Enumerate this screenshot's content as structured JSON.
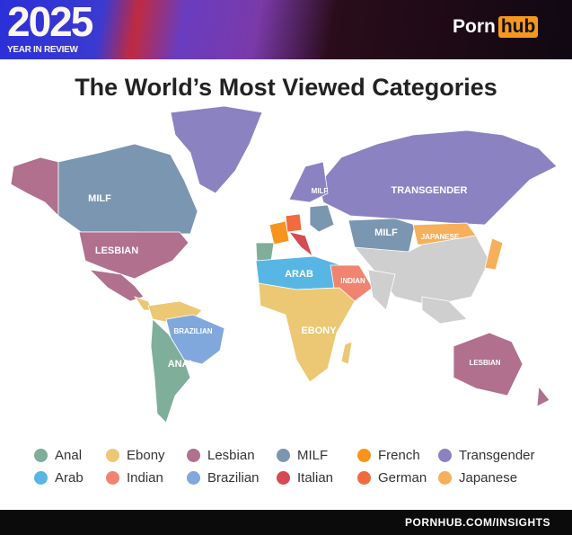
{
  "header": {
    "year": "2025",
    "subtitle": "YEAR IN REVIEW",
    "logo_left": "Porn",
    "logo_right": "hub"
  },
  "title": "The World’s Most Viewed Categories",
  "colors": {
    "Anal": "#7fae9a",
    "Ebony": "#ecc874",
    "Lesbian": "#b0708e",
    "MILF": "#7b96b0",
    "French": "#f7941d",
    "Transgender": "#8b82c2",
    "Arab": "#58b6e4",
    "Indian": "#f08470",
    "Brazilian": "#80a8dc",
    "Italian": "#d64a52",
    "German": "#f26a3e",
    "Japanese": "#f6b05c",
    "Other": "#cfcfcf"
  },
  "legend": [
    {
      "label": "Anal"
    },
    {
      "label": "Ebony"
    },
    {
      "label": "Lesbian"
    },
    {
      "label": "MILF"
    },
    {
      "label": "French"
    },
    {
      "label": "Transgender"
    },
    {
      "label": "Arab"
    },
    {
      "label": "Indian"
    },
    {
      "label": "Brazilian"
    },
    {
      "label": "Italian"
    },
    {
      "label": "German"
    },
    {
      "label": "Japanese"
    }
  ],
  "map_labels": [
    "MILF",
    "LESBIAN",
    "MILF",
    "TRANSGENDER",
    "MILF",
    "JAPANESE",
    "ARAB",
    "INDIAN",
    "BRAZILIAN",
    "EBONY",
    "ANAL",
    "LESBIAN"
  ],
  "footer": {
    "url": "PORNHUB.COM/INSIGHTS"
  }
}
